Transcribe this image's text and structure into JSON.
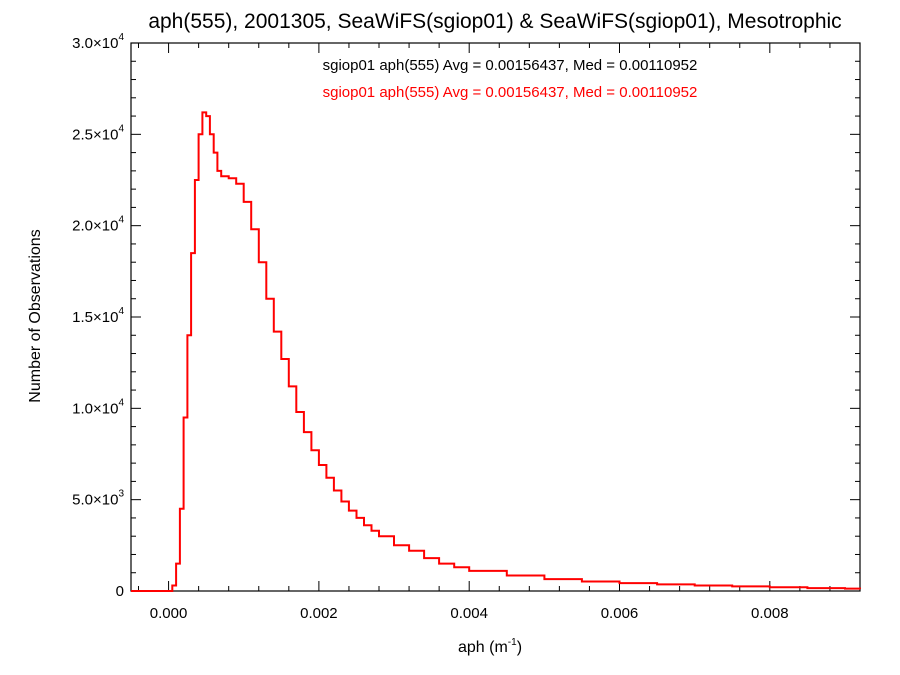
{
  "chart_data": {
    "type": "line",
    "title": "aph(555), 2001305, SeaWiFS(sgiop01) & SeaWiFS(sgiop01), Mesotrophic",
    "xlabel": "aph (m",
    "xlabel_sup": "-1",
    "xlabel_suffix": ")",
    "ylabel": "Number of Observations",
    "xlim": [
      -0.0005,
      0.0092
    ],
    "ylim": [
      0,
      30000
    ],
    "grid": false,
    "legend_position": "top-center",
    "x_ticks": [
      {
        "value": 0.0,
        "label": "0.000"
      },
      {
        "value": 0.002,
        "label": "0.002"
      },
      {
        "value": 0.004,
        "label": "0.004"
      },
      {
        "value": 0.006,
        "label": "0.006"
      },
      {
        "value": 0.008,
        "label": "0.008"
      }
    ],
    "y_ticks": [
      {
        "value": 0,
        "mantissa": "0",
        "exp": ""
      },
      {
        "value": 5000,
        "mantissa": "5.0",
        "exp": "3"
      },
      {
        "value": 10000,
        "mantissa": "1.0",
        "exp": "4"
      },
      {
        "value": 15000,
        "mantissa": "1.5",
        "exp": "4"
      },
      {
        "value": 20000,
        "mantissa": "2.0",
        "exp": "4"
      },
      {
        "value": 25000,
        "mantissa": "2.5",
        "exp": "4"
      },
      {
        "value": 30000,
        "mantissa": "3.0",
        "exp": "4"
      }
    ],
    "legend": [
      {
        "text": "sgiop01 aph(555) Avg = 0.00156437, Med = 0.00110952",
        "color": "#000000"
      },
      {
        "text": "sgiop01 aph(555) Avg = 0.00156437, Med = 0.00110952",
        "color": "#ff0000"
      }
    ],
    "series": [
      {
        "color": "#ff0000",
        "step": true,
        "x": [
          -0.0005,
          -0.0001,
          5e-05,
          0.0001,
          0.00015,
          0.0002,
          0.00025,
          0.0003,
          0.00035,
          0.0004,
          0.00045,
          0.0005,
          0.00055,
          0.0006,
          0.00065,
          0.0007,
          0.0008,
          0.0009,
          0.001,
          0.0011,
          0.0012,
          0.0013,
          0.0014,
          0.0015,
          0.0016,
          0.0017,
          0.0018,
          0.0019,
          0.002,
          0.0021,
          0.0022,
          0.0023,
          0.0024,
          0.0025,
          0.0026,
          0.0027,
          0.0028,
          0.003,
          0.0032,
          0.0034,
          0.0036,
          0.0038,
          0.004,
          0.0045,
          0.005,
          0.0055,
          0.006,
          0.0065,
          0.007,
          0.0075,
          0.008,
          0.0085,
          0.009,
          0.0092
        ],
        "y": [
          0,
          0,
          300,
          1500,
          4500,
          9500,
          14000,
          18500,
          22500,
          25000,
          26200,
          26000,
          25000,
          24000,
          23000,
          22700,
          22600,
          22300,
          21300,
          19800,
          18000,
          16000,
          14200,
          12700,
          11200,
          9800,
          8700,
          7700,
          6900,
          6200,
          5500,
          4900,
          4400,
          4000,
          3600,
          3300,
          3000,
          2500,
          2200,
          1800,
          1500,
          1300,
          1100,
          850,
          650,
          520,
          430,
          360,
          300,
          250,
          200,
          160,
          130,
          110
        ]
      }
    ]
  }
}
